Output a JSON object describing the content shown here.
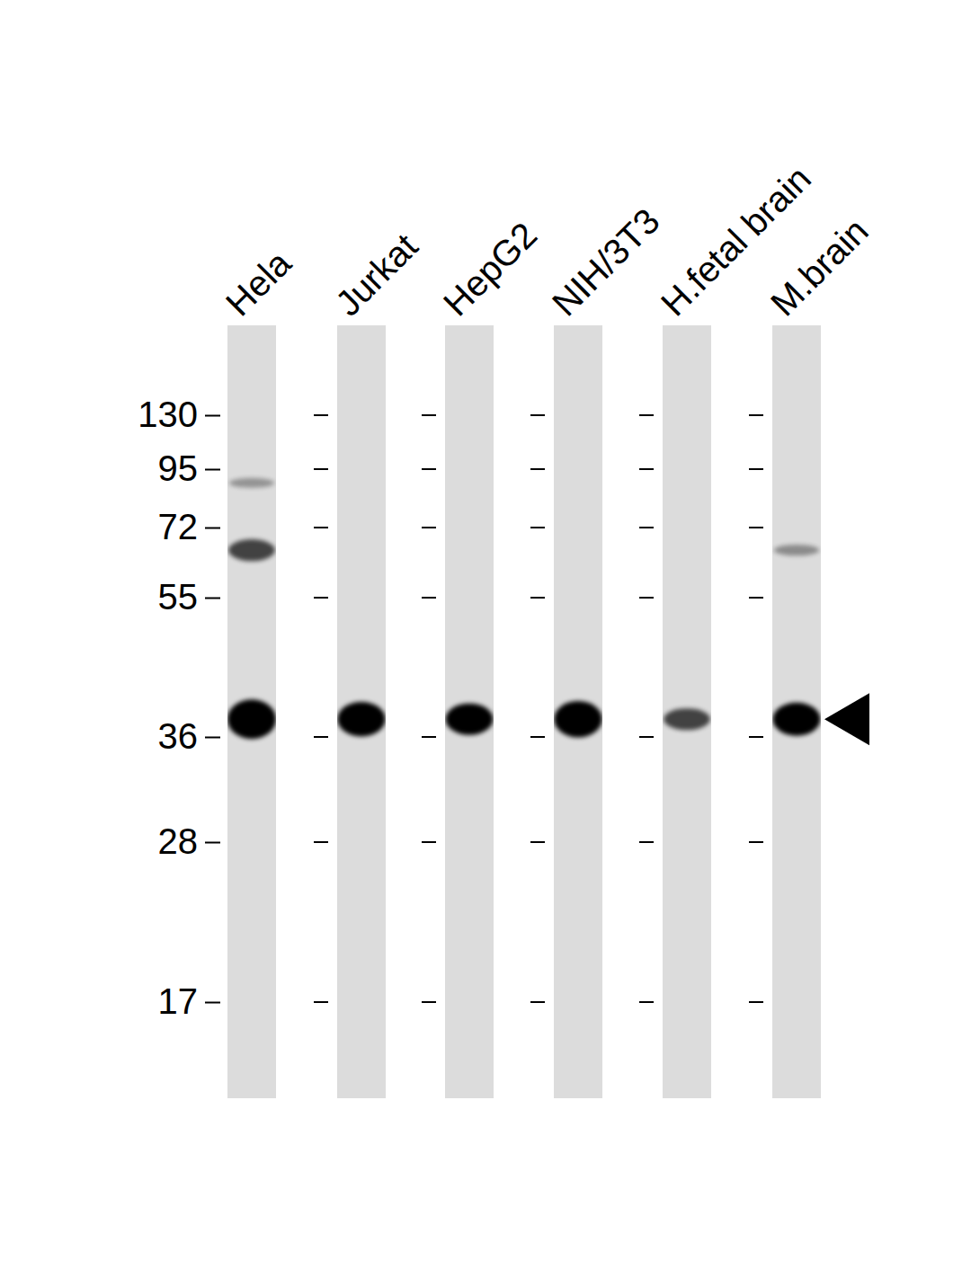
{
  "chart_data": {
    "type": "blot",
    "categories": [
      "Hela",
      "Jurkat",
      "HepG2",
      "NIH/3T3",
      "H.fetal brain",
      "M.brain"
    ],
    "log": "y",
    "ylim": [
      220,
      13
    ],
    "yticks": [
      130,
      95,
      72,
      55,
      36,
      28,
      17
    ],
    "bands": [
      [
        {
          "kda": 38,
          "intensity": 1.0
        },
        {
          "kda": 66,
          "intensity": 0.45
        },
        {
          "kda": 89,
          "intensity": 0.08
        }
      ],
      [
        {
          "kda": 38,
          "intensity": 0.85
        }
      ],
      [
        {
          "kda": 38,
          "intensity": 0.75
        }
      ],
      [
        {
          "kda": 38,
          "intensity": 0.9
        }
      ],
      [
        {
          "kda": 38,
          "intensity": 0.45
        }
      ],
      [
        {
          "kda": 38,
          "intensity": 0.8
        },
        {
          "kda": 66,
          "intensity": 0.12
        }
      ]
    ],
    "color": "#000000"
  }
}
